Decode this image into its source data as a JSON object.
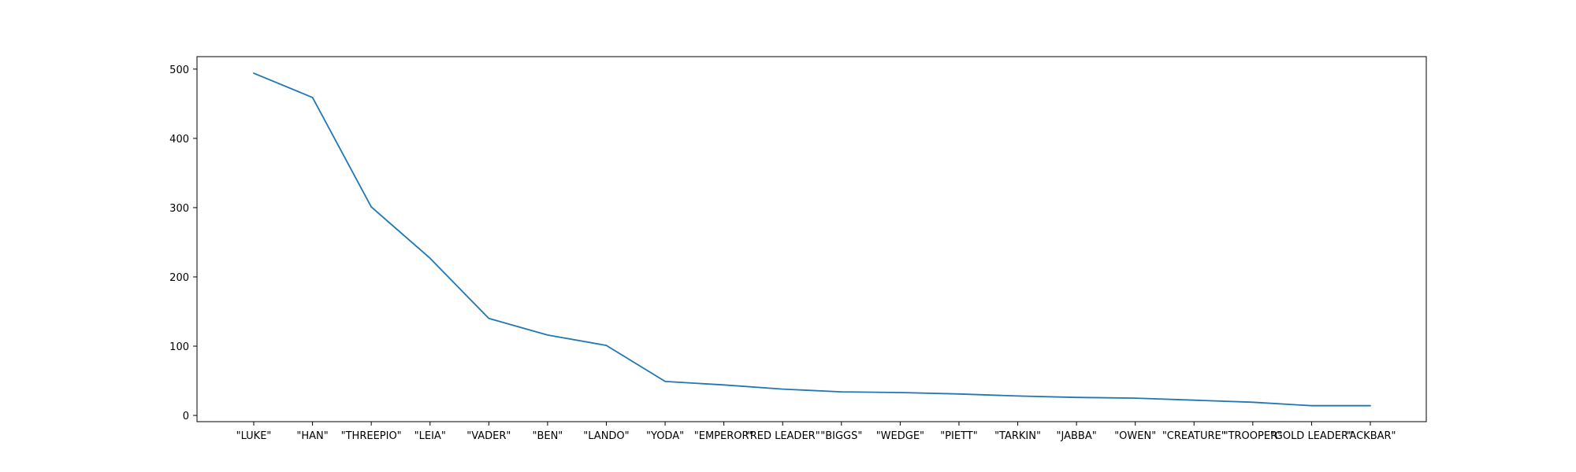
{
  "chart_data": {
    "type": "line",
    "title": "",
    "xlabel": "",
    "ylabel": "",
    "categories": [
      "\"LUKE\"",
      "\"HAN\"",
      "\"THREEPIO\"",
      "\"LEIA\"",
      "\"VADER\"",
      "\"BEN\"",
      "\"LANDO\"",
      "\"YODA\"",
      "\"EMPEROR\"",
      "\"RED LEADER\"",
      "\"BIGGS\"",
      "\"WEDGE\"",
      "\"PIETT\"",
      "\"TARKIN\"",
      "\"JABBA\"",
      "\"OWEN\"",
      "\"CREATURE\"",
      "\"TROOPER\"",
      "\"GOLD LEADER\"",
      "\"ACKBAR\""
    ],
    "series": [
      {
        "values": [
          494,
          459,
          301,
          227,
          140,
          116,
          101,
          49,
          44,
          38,
          34,
          33,
          31,
          28,
          26,
          25,
          22,
          19,
          14,
          14
        ]
      }
    ],
    "ylim": [
      -9,
      518
    ],
    "yticks": [
      0,
      100,
      200,
      300,
      400,
      500
    ],
    "grid": false,
    "line_color": "#1f77b4"
  }
}
